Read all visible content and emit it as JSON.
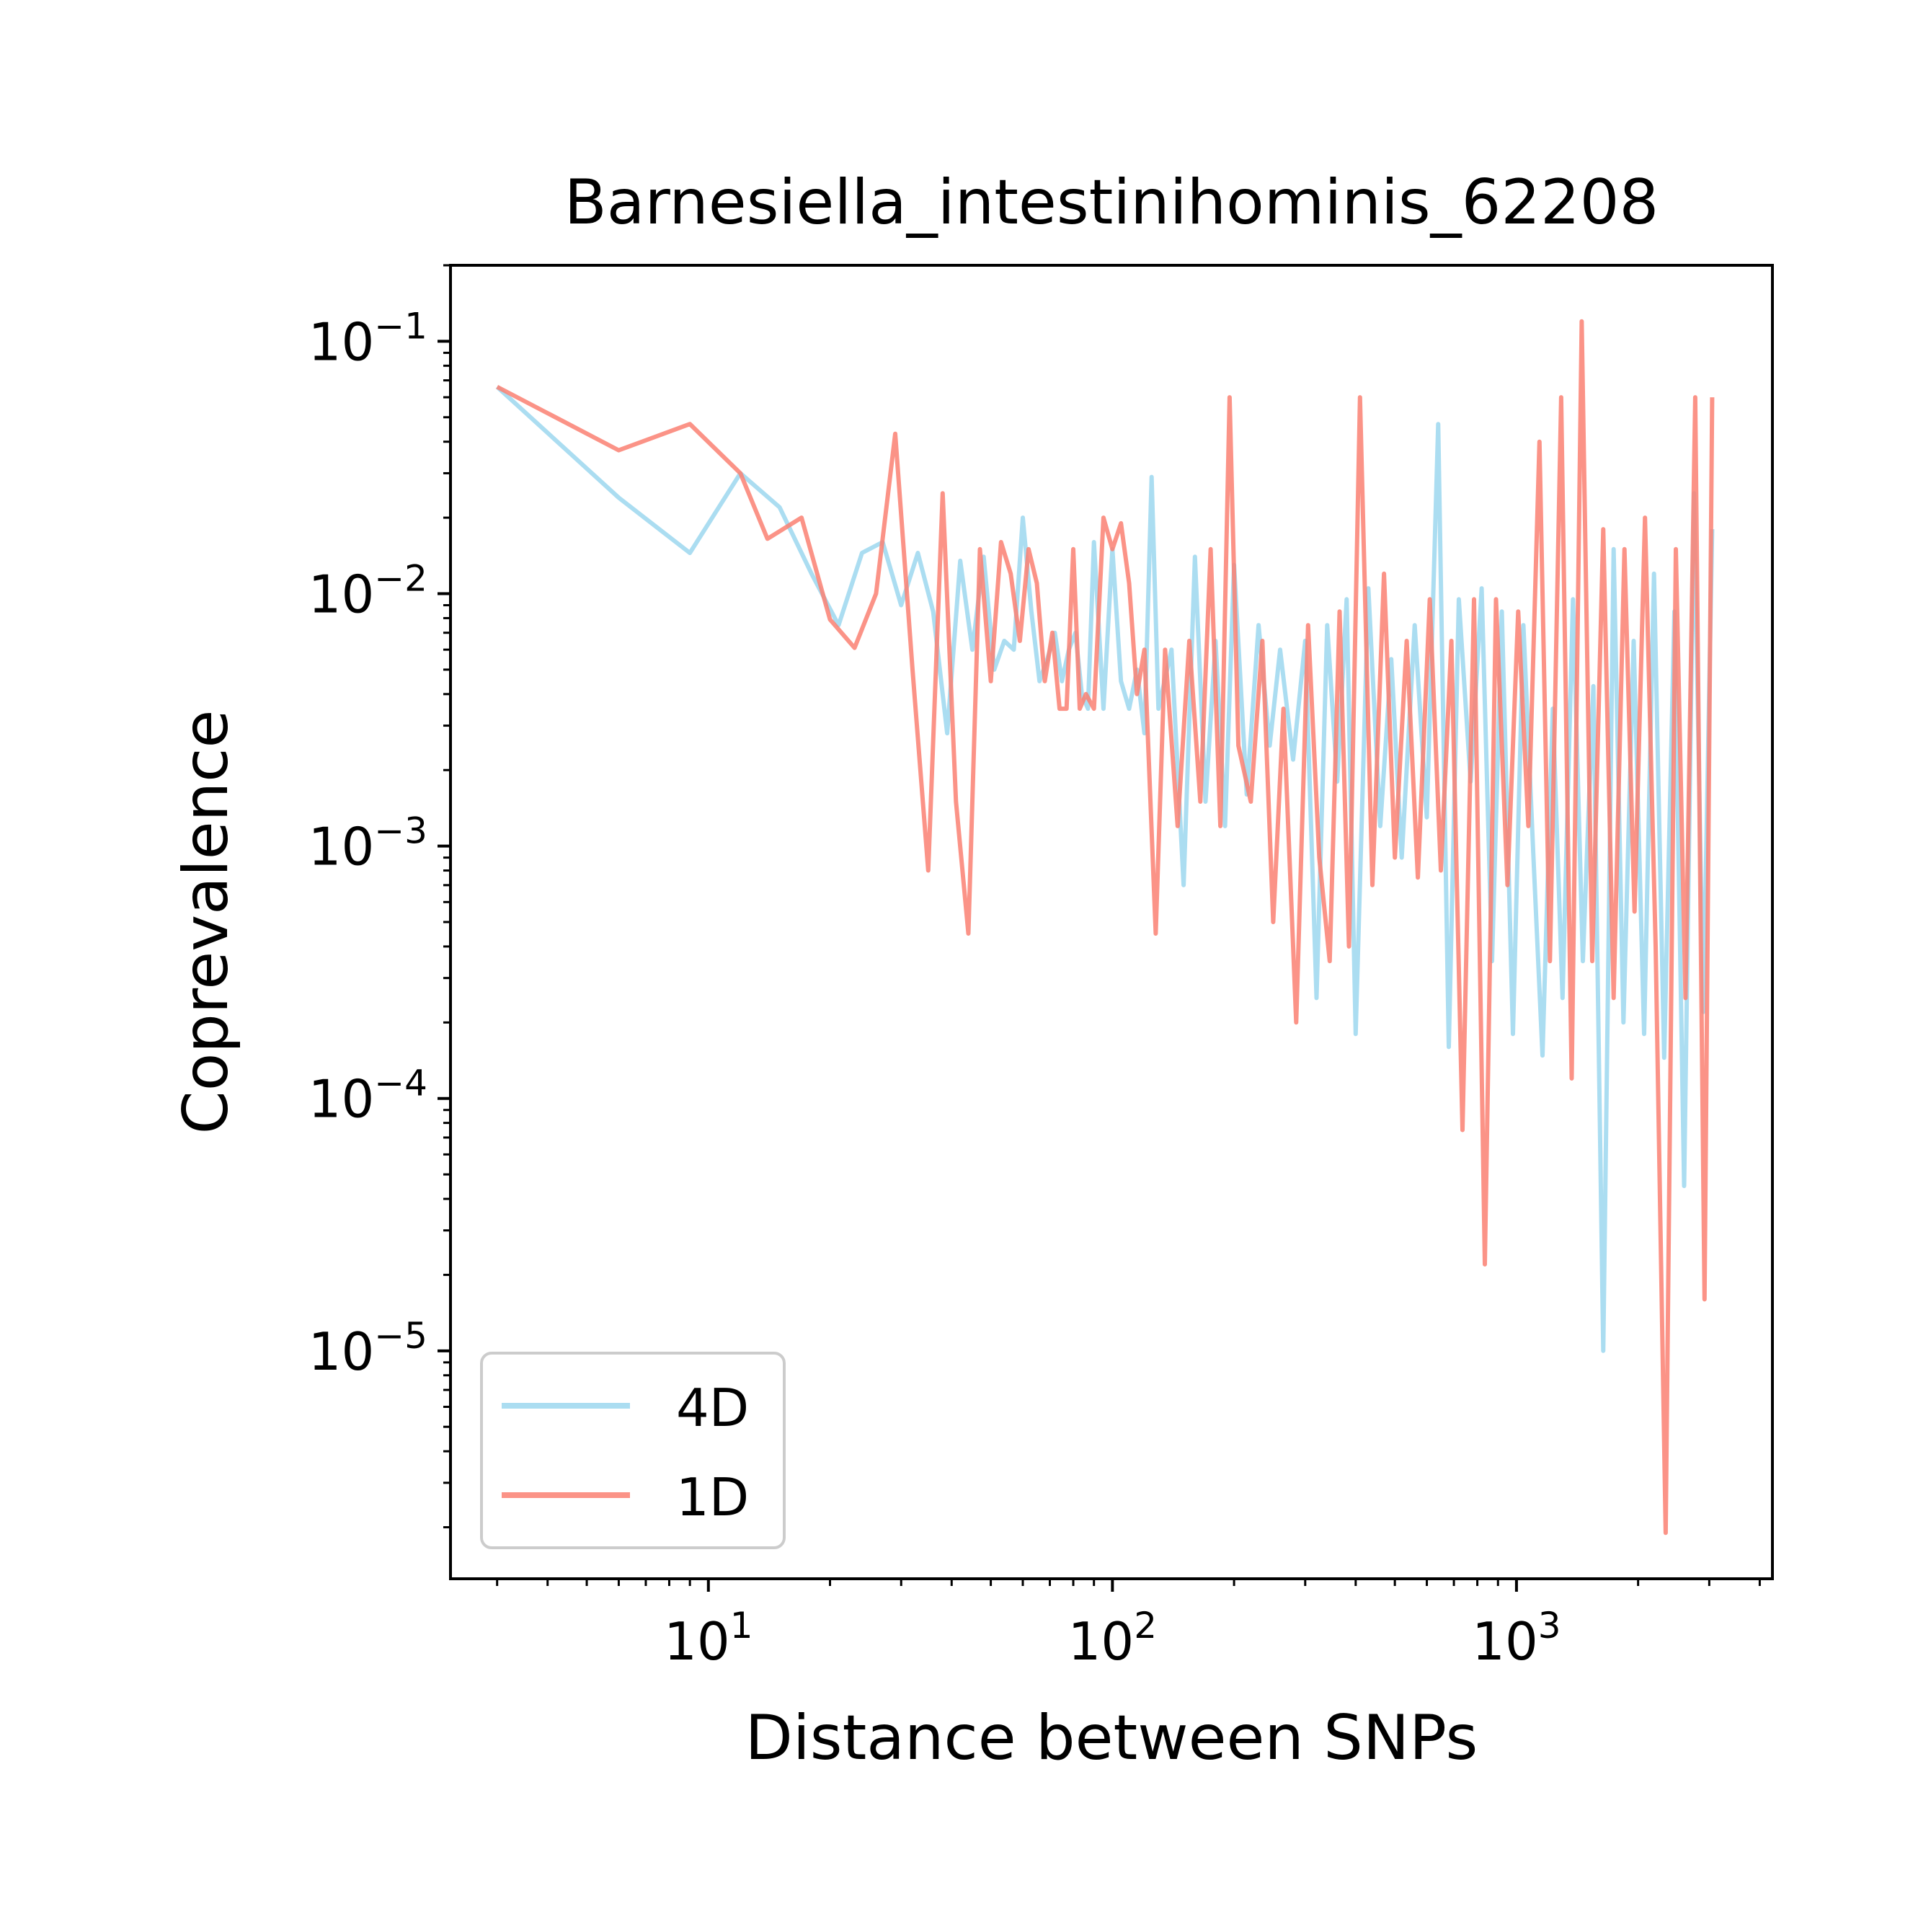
{
  "chart_data": {
    "type": "line",
    "title": "Barnesiella_intestinihominis_62208",
    "xlabel": "Distance between SNPs",
    "ylabel": "Coprevalence",
    "xscale": "log",
    "yscale": "log",
    "xlim": [
      2.3,
      4300
    ],
    "ylim": [
      1.25e-06,
      0.2
    ],
    "xticks": [
      {
        "value": 10,
        "base": "10",
        "exp": "1"
      },
      {
        "value": 100,
        "base": "10",
        "exp": "2"
      },
      {
        "value": 1000,
        "base": "10",
        "exp": "3"
      }
    ],
    "yticks": [
      {
        "value": 1e-05,
        "base": "10",
        "exp": "−5"
      },
      {
        "value": 0.0001,
        "base": "10",
        "exp": "−4"
      },
      {
        "value": 0.001,
        "base": "10",
        "exp": "−3"
      },
      {
        "value": 0.01,
        "base": "10",
        "exp": "−2"
      },
      {
        "value": 0.1,
        "base": "10",
        "exp": "−1"
      }
    ],
    "grid": false,
    "legend": {
      "position": "lower-left"
    },
    "series": [
      {
        "name": "4D",
        "color": "#87CEEB",
        "x": [
          3,
          6,
          9,
          12,
          15,
          18,
          21,
          24,
          27,
          30,
          33,
          36,
          39,
          42,
          45,
          48,
          51,
          54,
          57,
          60,
          63,
          66,
          69,
          72,
          75,
          78,
          81,
          84,
          87,
          90,
          95,
          100,
          105,
          110,
          115,
          120,
          125,
          130,
          140,
          150,
          160,
          170,
          180,
          190,
          200,
          215,
          230,
          245,
          260,
          280,
          300,
          320,
          340,
          360,
          380,
          400,
          430,
          460,
          490,
          520,
          560,
          600,
          640,
          680,
          720,
          770,
          820,
          870,
          920,
          980,
          1040,
          1100,
          1160,
          1230,
          1300,
          1380,
          1460,
          1550,
          1640,
          1740,
          1840,
          1950,
          2070,
          2190,
          2320,
          2460,
          2600,
          2750,
          2900,
          3050
        ],
        "y": [
          0.066,
          0.024,
          0.0145,
          0.03,
          0.022,
          0.012,
          0.0075,
          0.0145,
          0.016,
          0.009,
          0.0145,
          0.0085,
          0.0028,
          0.0135,
          0.006,
          0.014,
          0.005,
          0.0065,
          0.006,
          0.02,
          0.0085,
          0.0045,
          0.0055,
          0.007,
          0.0045,
          0.006,
          0.007,
          0.004,
          0.0035,
          0.016,
          0.0035,
          0.015,
          0.0045,
          0.0035,
          0.005,
          0.0028,
          0.029,
          0.0035,
          0.006,
          0.0007,
          0.014,
          0.0015,
          0.0065,
          0.0012,
          0.013,
          0.0016,
          0.0075,
          0.0025,
          0.006,
          0.0022,
          0.0065,
          0.00025,
          0.0075,
          0.0018,
          0.0095,
          0.00018,
          0.0105,
          0.0012,
          0.0055,
          0.0009,
          0.0075,
          0.0013,
          0.047,
          0.00016,
          0.0095,
          0.0018,
          0.0105,
          0.00035,
          0.0085,
          0.00018,
          0.0075,
          0.00095,
          0.000148,
          0.0035,
          0.00025,
          0.0095,
          0.00035,
          0.0043,
          1e-05,
          0.015,
          0.0002,
          0.0065,
          0.00018,
          0.012,
          0.000145,
          0.0085,
          4.5e-05,
          0.025,
          0.00022,
          0.018
        ]
      },
      {
        "name": "1D",
        "color": "#FA8072",
        "x": [
          3,
          6,
          9,
          12,
          14,
          17,
          20,
          23,
          26,
          29,
          32,
          35,
          38,
          41,
          44,
          47,
          50,
          53,
          56,
          59,
          62,
          65,
          68,
          71,
          74,
          77,
          80,
          83,
          86,
          90,
          95,
          100,
          105,
          110,
          115,
          120,
          128,
          135,
          145,
          155,
          165,
          175,
          185,
          195,
          205,
          220,
          235,
          250,
          265,
          285,
          305,
          325,
          345,
          365,
          385,
          410,
          440,
          470,
          500,
          535,
          570,
          610,
          650,
          690,
          735,
          785,
          835,
          890,
          950,
          1010,
          1070,
          1140,
          1210,
          1290,
          1370,
          1450,
          1540,
          1640,
          1740,
          1850,
          1960,
          2080,
          2210,
          2340,
          2480,
          2620,
          2770,
          2920,
          3050
        ],
        "y": [
          0.066,
          0.037,
          0.047,
          0.03,
          0.0165,
          0.02,
          0.0079,
          0.0061,
          0.01,
          0.043,
          0.005,
          0.0008,
          0.025,
          0.0015,
          0.00045,
          0.015,
          0.0045,
          0.016,
          0.012,
          0.0065,
          0.015,
          0.011,
          0.0045,
          0.007,
          0.0035,
          0.0035,
          0.015,
          0.0035,
          0.004,
          0.0035,
          0.02,
          0.015,
          0.019,
          0.011,
          0.004,
          0.006,
          0.00045,
          0.006,
          0.0012,
          0.0065,
          0.0015,
          0.015,
          0.0012,
          0.06,
          0.0025,
          0.0015,
          0.0065,
          0.0005,
          0.0035,
          0.0002,
          0.0075,
          0.0009,
          0.00035,
          0.0085,
          0.0004,
          0.06,
          0.0007,
          0.012,
          0.0009,
          0.0065,
          0.00075,
          0.0095,
          0.0008,
          0.0065,
          7.5e-05,
          0.0095,
          2.2e-05,
          0.0095,
          0.0007,
          0.0085,
          0.0012,
          0.04,
          0.00035,
          0.06,
          0.00012,
          0.12,
          0.00035,
          0.018,
          0.00025,
          0.015,
          0.00055,
          0.02,
          0.0004,
          1.9e-06,
          0.015,
          0.00025,
          0.06,
          1.6e-05,
          0.06
        ]
      }
    ]
  }
}
